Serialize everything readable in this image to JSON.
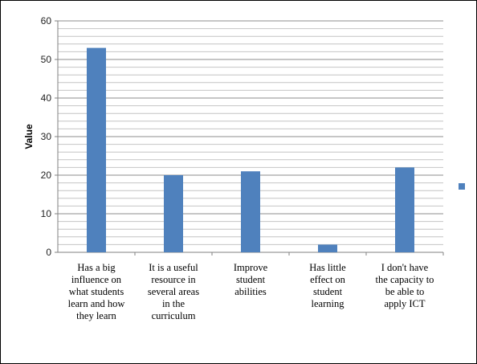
{
  "chart_data": {
    "type": "bar",
    "title": "",
    "xlabel": "",
    "ylabel": "Value",
    "ylim": [
      0,
      60
    ],
    "yticks": [
      0,
      10,
      20,
      30,
      40,
      50,
      60
    ],
    "minor_grid_step": 2,
    "grid": true,
    "legend": "right",
    "bar_color": "#4F81BD",
    "categories": [
      [
        "Has a big",
        "influence on",
        "what students",
        "learn and how",
        "they learn"
      ],
      [
        "It is a useful",
        "resource in",
        "several areas",
        "in the",
        "curriculum"
      ],
      [
        "Improve",
        "student",
        "abilities"
      ],
      [
        "Has little",
        "effect on",
        "student",
        "learning"
      ],
      [
        "I don't have",
        "the capacity to",
        "be able to",
        "apply ICT"
      ]
    ],
    "values": [
      53,
      20,
      21,
      2,
      22
    ]
  }
}
